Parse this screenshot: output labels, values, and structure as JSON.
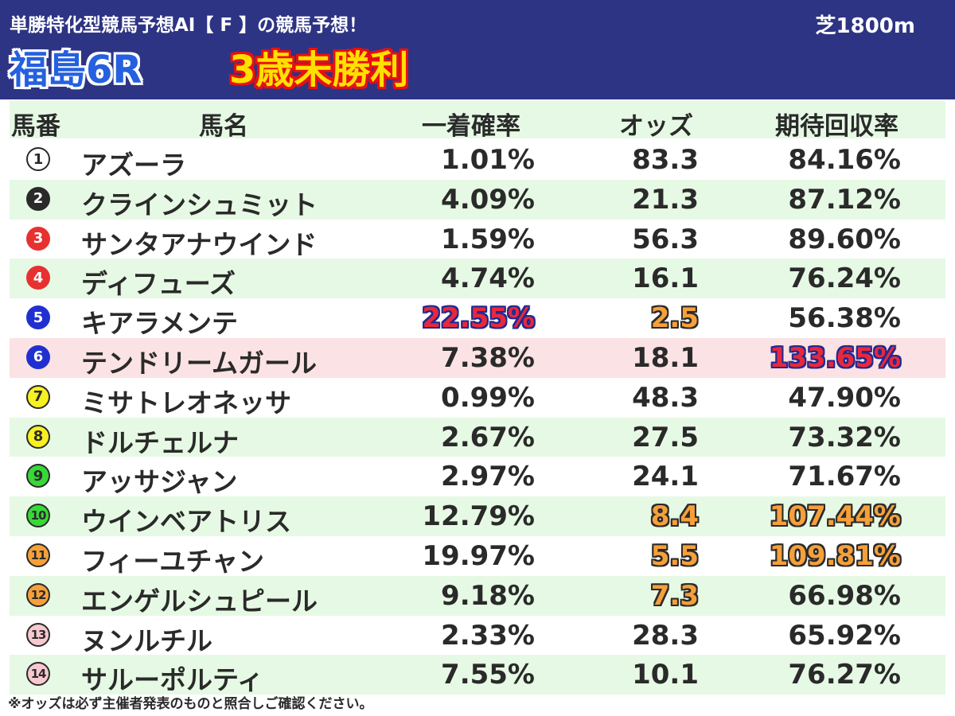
{
  "header": {
    "subtitle": "単勝特化型競馬予想AI【 F 】の競馬予想！",
    "distance": "芝1800m",
    "race_name": "福島6R",
    "race_class": "3歳未勝利"
  },
  "table": {
    "columns": [
      "馬番",
      "馬名",
      "一着確率",
      "オッズ",
      "期待回収率"
    ],
    "rows": [
      {
        "num": "1",
        "name": "アズーラ",
        "prob": "1.01%",
        "odds": "83.3",
        "rate": "84.16%",
        "num_bg": "#ffffff",
        "num_fg": "#2a2a2a",
        "num_border": "#2a2a2a",
        "prob_hl": "",
        "odds_hl": "",
        "rate_hl": "",
        "row_bg": "white"
      },
      {
        "num": "2",
        "name": "クラインシュミット",
        "prob": "4.09%",
        "odds": "21.3",
        "rate": "87.12%",
        "num_bg": "#2a2a2a",
        "num_fg": "#ffffff",
        "num_border": "#2a2a2a",
        "prob_hl": "",
        "odds_hl": "",
        "rate_hl": "",
        "row_bg": "alt"
      },
      {
        "num": "3",
        "name": "サンタアナウインド",
        "prob": "1.59%",
        "odds": "56.3",
        "rate": "89.60%",
        "num_bg": "#e83030",
        "num_fg": "#ffffff",
        "num_border": "#e83030",
        "prob_hl": "",
        "odds_hl": "",
        "rate_hl": "",
        "row_bg": "white"
      },
      {
        "num": "4",
        "name": "ディフューズ",
        "prob": "4.74%",
        "odds": "16.1",
        "rate": "76.24%",
        "num_bg": "#e83030",
        "num_fg": "#ffffff",
        "num_border": "#e83030",
        "prob_hl": "",
        "odds_hl": "",
        "rate_hl": "",
        "row_bg": "alt"
      },
      {
        "num": "5",
        "name": "キアラメンテ",
        "prob": "22.55%",
        "odds": "2.5",
        "rate": "56.38%",
        "num_bg": "#2030d0",
        "num_fg": "#ffffff",
        "num_border": "#2030d0",
        "prob_hl": "blue-hl",
        "odds_hl": "orange-hl",
        "rate_hl": "",
        "row_bg": "white"
      },
      {
        "num": "6",
        "name": "テンドリームガール",
        "prob": "7.38%",
        "odds": "18.1",
        "rate": "133.65%",
        "num_bg": "#2030d0",
        "num_fg": "#ffffff",
        "num_border": "#2030d0",
        "prob_hl": "",
        "odds_hl": "",
        "rate_hl": "blue-hl",
        "row_bg": "hilite"
      },
      {
        "num": "7",
        "name": "ミサトレオネッサ",
        "prob": "0.99%",
        "odds": "48.3",
        "rate": "47.90%",
        "num_bg": "#f8f020",
        "num_fg": "#2a2a2a",
        "num_border": "#2a2a2a",
        "prob_hl": "",
        "odds_hl": "",
        "rate_hl": "",
        "row_bg": "white"
      },
      {
        "num": "8",
        "name": "ドルチェルナ",
        "prob": "2.67%",
        "odds": "27.5",
        "rate": "73.32%",
        "num_bg": "#f8f020",
        "num_fg": "#2a2a2a",
        "num_border": "#2a2a2a",
        "prob_hl": "",
        "odds_hl": "",
        "rate_hl": "",
        "row_bg": "alt"
      },
      {
        "num": "9",
        "name": "アッサジャン",
        "prob": "2.97%",
        "odds": "24.1",
        "rate": "71.67%",
        "num_bg": "#38d838",
        "num_fg": "#2a2a2a",
        "num_border": "#2a2a2a",
        "prob_hl": "",
        "odds_hl": "",
        "rate_hl": "",
        "row_bg": "white"
      },
      {
        "num": "10",
        "name": "ウインベアトリス",
        "prob": "12.79%",
        "odds": "8.4",
        "rate": "107.44%",
        "num_bg": "#38d838",
        "num_fg": "#2a2a2a",
        "num_border": "#2a2a2a",
        "prob_hl": "",
        "odds_hl": "orange-hl",
        "rate_hl": "orange-hl",
        "row_bg": "alt"
      },
      {
        "num": "11",
        "name": "フィーユチャン",
        "prob": "19.97%",
        "odds": "5.5",
        "rate": "109.81%",
        "num_bg": "#f5a03a",
        "num_fg": "#2a2a2a",
        "num_border": "#2a2a2a",
        "prob_hl": "",
        "odds_hl": "orange-hl",
        "rate_hl": "orange-hl",
        "row_bg": "white"
      },
      {
        "num": "12",
        "name": "エンゲルシュピール",
        "prob": "9.18%",
        "odds": "7.3",
        "rate": "66.98%",
        "num_bg": "#f5a03a",
        "num_fg": "#2a2a2a",
        "num_border": "#2a2a2a",
        "prob_hl": "",
        "odds_hl": "orange-hl",
        "rate_hl": "",
        "row_bg": "alt"
      },
      {
        "num": "13",
        "name": "ヌンルチル",
        "prob": "2.33%",
        "odds": "28.3",
        "rate": "65.92%",
        "num_bg": "#f8c8d0",
        "num_fg": "#2a2a2a",
        "num_border": "#2a2a2a",
        "prob_hl": "",
        "odds_hl": "",
        "rate_hl": "",
        "row_bg": "white"
      },
      {
        "num": "14",
        "name": "サルーポルティ",
        "prob": "7.55%",
        "odds": "10.1",
        "rate": "76.27%",
        "num_bg": "#f8c8d0",
        "num_fg": "#2a2a2a",
        "num_border": "#2a2a2a",
        "prob_hl": "",
        "odds_hl": "",
        "rate_hl": "",
        "row_bg": "alt"
      }
    ]
  },
  "footnote": "※オッズは必ず主催者発表のものと照合しご確認ください。"
}
